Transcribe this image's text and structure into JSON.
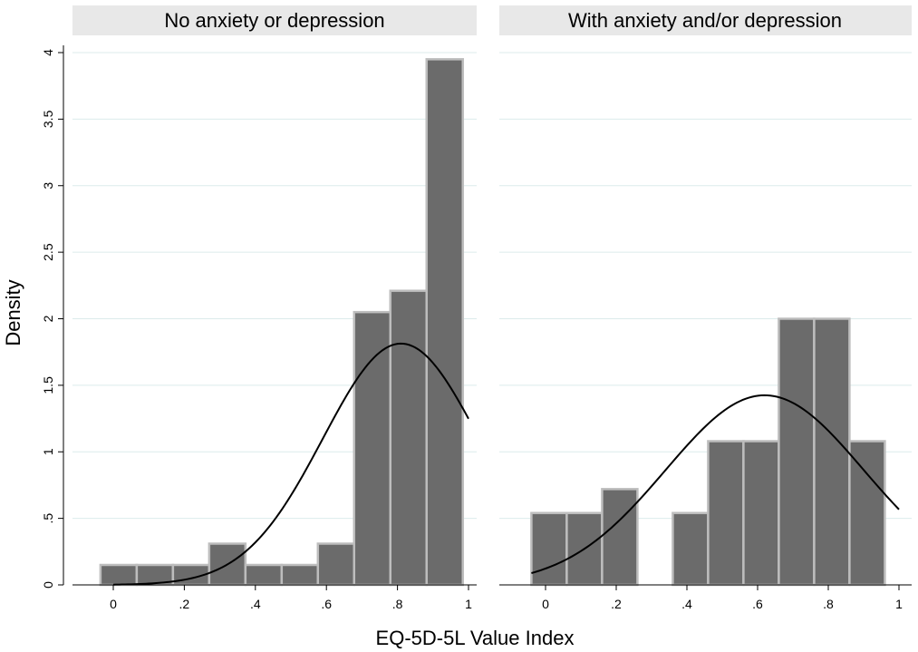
{
  "chart_data": {
    "type": "bar",
    "xlabel": "EQ-5D-5L Value Index",
    "ylabel": "Density",
    "xlim": [
      -0.1,
      1.0
    ],
    "ylim": [
      0,
      4
    ],
    "bin_width": 0.1,
    "x_ticks": [
      {
        "value": 0,
        "label": "0"
      },
      {
        "value": 0.2,
        "label": ".2"
      },
      {
        "value": 0.4,
        "label": ".4"
      },
      {
        "value": 0.6,
        "label": ".6"
      },
      {
        "value": 0.8,
        "label": ".8"
      },
      {
        "value": 1.0,
        "label": "1"
      }
    ],
    "y_ticks": [
      {
        "value": 0,
        "label": "0"
      },
      {
        "value": 0.5,
        "label": ".5"
      },
      {
        "value": 1,
        "label": "1"
      },
      {
        "value": 1.5,
        "label": "1.5"
      },
      {
        "value": 2,
        "label": "2"
      },
      {
        "value": 2.5,
        "label": "2.5"
      },
      {
        "value": 3,
        "label": "3"
      },
      {
        "value": 3.5,
        "label": "3.5"
      },
      {
        "value": 4,
        "label": "4"
      }
    ],
    "colors": {
      "bar_fill": "#6b6b6b",
      "bar_stroke": "#bdbdbd",
      "header_bg": "#e8e8e8",
      "grid": "#dcebeb",
      "curve": "#000000"
    },
    "panels": [
      {
        "title": "No anxiety or depression",
        "bins": [
          {
            "x0": -0.036,
            "x1": 0.066,
            "value": 0.15
          },
          {
            "x0": 0.066,
            "x1": 0.168,
            "value": 0.15
          },
          {
            "x0": 0.168,
            "x1": 0.27,
            "value": 0.15
          },
          {
            "x0": 0.27,
            "x1": 0.372,
            "value": 0.31
          },
          {
            "x0": 0.372,
            "x1": 0.474,
            "value": 0.15
          },
          {
            "x0": 0.474,
            "x1": 0.576,
            "value": 0.15
          },
          {
            "x0": 0.576,
            "x1": 0.678,
            "value": 0.31
          },
          {
            "x0": 0.678,
            "x1": 0.78,
            "value": 2.05
          },
          {
            "x0": 0.78,
            "x1": 0.882,
            "value": 2.21
          },
          {
            "x0": 0.882,
            "x1": 0.984,
            "value": 3.95
          }
        ],
        "normal_curve": {
          "mean": 0.81,
          "sd": 0.22,
          "x_start": 0.0,
          "x_end": 1.0
        }
      },
      {
        "title": "With anxiety and/or depression",
        "bins": [
          {
            "x0": -0.04,
            "x1": 0.06,
            "value": 0.54
          },
          {
            "x0": 0.06,
            "x1": 0.16,
            "value": 0.54
          },
          {
            "x0": 0.16,
            "x1": 0.26,
            "value": 0.72
          },
          {
            "x0": 0.36,
            "x1": 0.46,
            "value": 0.54
          },
          {
            "x0": 0.46,
            "x1": 0.56,
            "value": 1.08
          },
          {
            "x0": 0.56,
            "x1": 0.66,
            "value": 1.08
          },
          {
            "x0": 0.66,
            "x1": 0.76,
            "value": 2.0
          },
          {
            "x0": 0.76,
            "x1": 0.86,
            "value": 2.0
          },
          {
            "x0": 0.86,
            "x1": 0.96,
            "value": 1.08
          }
        ],
        "normal_curve": {
          "mean": 0.62,
          "sd": 0.28,
          "x_start": -0.04,
          "x_end": 1.0
        }
      }
    ]
  }
}
